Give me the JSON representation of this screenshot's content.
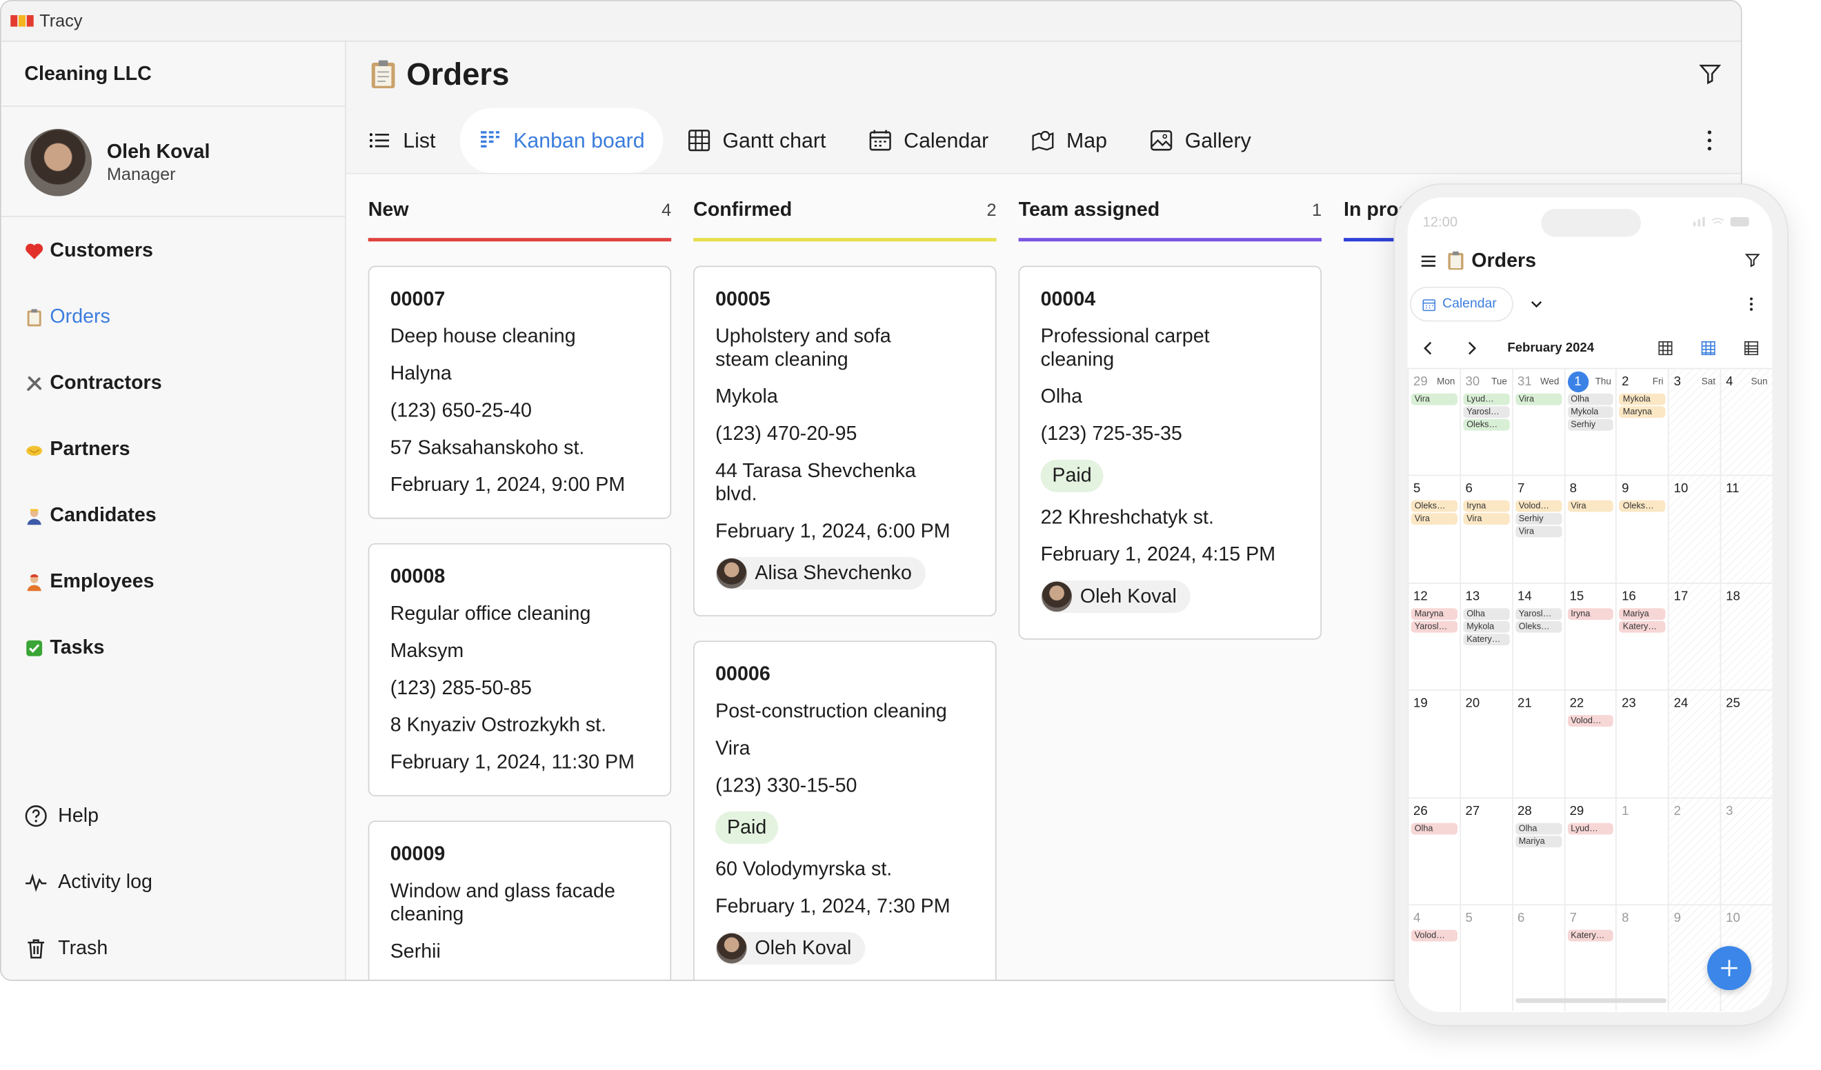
{
  "window": {
    "title": "Tracy"
  },
  "sidebar": {
    "company": "Cleaning LLC",
    "user": {
      "name": "Oleh Koval",
      "role": "Manager"
    },
    "nav": [
      "Customers",
      "Orders",
      "Contractors",
      "Partners",
      "Candidates",
      "Employees",
      "Tasks"
    ],
    "active_nav": 1,
    "bottom": [
      "Help",
      "Activity log",
      "Trash"
    ]
  },
  "page": {
    "title": "Orders",
    "tabs": [
      "List",
      "Kanban board",
      "Gantt chart",
      "Calendar",
      "Map",
      "Gallery"
    ],
    "active_tab": 1
  },
  "columns": [
    {
      "name": "New",
      "count": 4,
      "color": "#e0433f",
      "cards": [
        {
          "id": "00007",
          "title": "Deep house cleaning",
          "contact": "Halyna",
          "phone": "(123) 650-25-40",
          "address": "57 Saksahanskoho st.",
          "date": "February 1, 2024, 9:00 PM"
        },
        {
          "id": "00008",
          "title": "Regular office cleaning",
          "contact": "Maksym",
          "phone": "(123) 285-50-85",
          "address": "8 Knyaziv Ostrozkykh st.",
          "date": "February 1, 2024, 11:30 PM"
        },
        {
          "id": "00009",
          "title": "Window and glass facade cleaning",
          "contact": "Serhii"
        }
      ]
    },
    {
      "name": "Confirmed",
      "count": 2,
      "color": "#e6df4c",
      "cards": [
        {
          "id": "00005",
          "title": "Upholstery and sofa steam cleaning",
          "contact": "Mykola",
          "phone": "(123) 470-20-95",
          "address": "44 Tarasa Shevchenka blvd.",
          "date": "February 1, 2024, 6:00 PM",
          "assignee": "Alisa Shevchenko"
        },
        {
          "id": "00006",
          "title": "Post-construction cleaning",
          "contact": "Vira",
          "phone": "(123) 330-15-50",
          "tag": "Paid",
          "address": "60 Volodymyrska st.",
          "date": "February 1, 2024, 7:30 PM",
          "assignee": "Oleh Koval"
        }
      ]
    },
    {
      "name": "Team assigned",
      "count": 1,
      "color": "#7a55e2",
      "cards": [
        {
          "id": "00004",
          "title": "Professional carpet cleaning",
          "contact": "Olha",
          "phone": "(123) 725-35-35",
          "tag": "Paid",
          "address": "22 Khreshchatyk st.",
          "date": "February 1, 2024, 4:15 PM",
          "assignee": "Oleh Koval"
        }
      ]
    },
    {
      "name": "In progress",
      "color": "#2f41d8",
      "cards": []
    }
  ],
  "phone": {
    "time": "12:00",
    "title": "Orders",
    "tab": "Calendar",
    "month": "February 2024",
    "weekdays": [
      "Mon",
      "Tue",
      "Wed",
      "Thu",
      "Fri",
      "Sat",
      "Sun"
    ],
    "days": [
      {
        "day": 29,
        "muted": true,
        "events": [
          {
            "name": "Vira",
            "color": "#d8efd5"
          }
        ]
      },
      {
        "day": 30,
        "muted": true,
        "events": [
          {
            "name": "Lyud…",
            "color": "#d8efd5"
          },
          {
            "name": "Yarosl…",
            "color": "#e8e8e8"
          },
          {
            "name": "Oleks…",
            "color": "#d8efd5"
          }
        ]
      },
      {
        "day": 31,
        "muted": true,
        "events": [
          {
            "name": "Vira",
            "color": "#d8efd5"
          }
        ]
      },
      {
        "day": 1,
        "today": true,
        "events": [
          {
            "name": "Olha",
            "color": "#e8e8e8"
          },
          {
            "name": "Mykola",
            "color": "#e8e8e8"
          },
          {
            "name": "Serhiy",
            "color": "#e8e8e8"
          }
        ]
      },
      {
        "day": 2,
        "events": [
          {
            "name": "Mykola",
            "color": "#fbe7c4"
          },
          {
            "name": "Maryna",
            "color": "#fbe7c4"
          }
        ]
      },
      {
        "day": 3,
        "events": []
      },
      {
        "day": 4,
        "events": []
      },
      {
        "day": 5,
        "events": [
          {
            "name": "Oleks…",
            "color": "#fbe7c4"
          },
          {
            "name": "Vira",
            "color": "#fbe7c4"
          }
        ]
      },
      {
        "day": 6,
        "events": [
          {
            "name": "Iryna",
            "color": "#fbe7c4"
          },
          {
            "name": "Vira",
            "color": "#fbe7c4"
          }
        ]
      },
      {
        "day": 7,
        "events": [
          {
            "name": "Volod…",
            "color": "#fbe7c4"
          },
          {
            "name": "Serhiy",
            "color": "#e8e8e8"
          },
          {
            "name": "Vira",
            "color": "#e8e8e8"
          }
        ]
      },
      {
        "day": 8,
        "events": [
          {
            "name": "Vira",
            "color": "#fbe7c4"
          }
        ]
      },
      {
        "day": 9,
        "events": [
          {
            "name": "Oleks…",
            "color": "#fbe7c4"
          }
        ]
      },
      {
        "day": 10,
        "events": []
      },
      {
        "day": 11,
        "events": []
      },
      {
        "day": 12,
        "events": [
          {
            "name": "Maryna",
            "color": "#f7d6d6"
          },
          {
            "name": "Yarosl…",
            "color": "#f7d6d6"
          }
        ]
      },
      {
        "day": 13,
        "events": [
          {
            "name": "Olha",
            "color": "#e8e8e8"
          },
          {
            "name": "Mykola",
            "color": "#e8e8e8"
          },
          {
            "name": "Katery…",
            "color": "#e8e8e8"
          }
        ]
      },
      {
        "day": 14,
        "events": [
          {
            "name": "Yarosl…",
            "color": "#e8e8e8"
          },
          {
            "name": "Oleks…",
            "color": "#e8e8e8"
          }
        ]
      },
      {
        "day": 15,
        "events": [
          {
            "name": "Iryna",
            "color": "#f7d6d6"
          }
        ]
      },
      {
        "day": 16,
        "events": [
          {
            "name": "Mariya",
            "color": "#f7d6d6"
          },
          {
            "name": "Katery…",
            "color": "#f7d6d6"
          }
        ]
      },
      {
        "day": 17,
        "events": []
      },
      {
        "day": 18,
        "events": []
      },
      {
        "day": 19,
        "events": []
      },
      {
        "day": 20,
        "events": []
      },
      {
        "day": 21,
        "events": []
      },
      {
        "day": 22,
        "events": [
          {
            "name": "Volod…",
            "color": "#f7d6d6"
          }
        ]
      },
      {
        "day": 23,
        "events": []
      },
      {
        "day": 24,
        "events": []
      },
      {
        "day": 25,
        "events": []
      },
      {
        "day": 26,
        "events": [
          {
            "name": "Olha",
            "color": "#f7d6d6"
          }
        ]
      },
      {
        "day": 27,
        "events": []
      },
      {
        "day": 28,
        "events": [
          {
            "name": "Olha",
            "color": "#e8e8e8"
          },
          {
            "name": "Mariya",
            "color": "#e8e8e8"
          }
        ]
      },
      {
        "day": 29,
        "events": [
          {
            "name": "Lyud…",
            "color": "#f7d6d6"
          }
        ]
      },
      {
        "day": 1,
        "muted": true,
        "events": []
      },
      {
        "day": 2,
        "muted": true,
        "events": []
      },
      {
        "day": 3,
        "muted": true,
        "events": []
      },
      {
        "day": 4,
        "muted": true,
        "events": [
          {
            "name": "Volod…",
            "color": "#f7d6d6"
          }
        ]
      },
      {
        "day": 5,
        "muted": true,
        "events": []
      },
      {
        "day": 6,
        "muted": true,
        "events": []
      },
      {
        "day": 7,
        "muted": true,
        "events": [
          {
            "name": "Katery…",
            "color": "#f7d6d6"
          }
        ]
      },
      {
        "day": 8,
        "muted": true,
        "events": []
      },
      {
        "day": 9,
        "muted": true,
        "events": []
      },
      {
        "day": 10,
        "muted": true,
        "events": []
      }
    ]
  }
}
